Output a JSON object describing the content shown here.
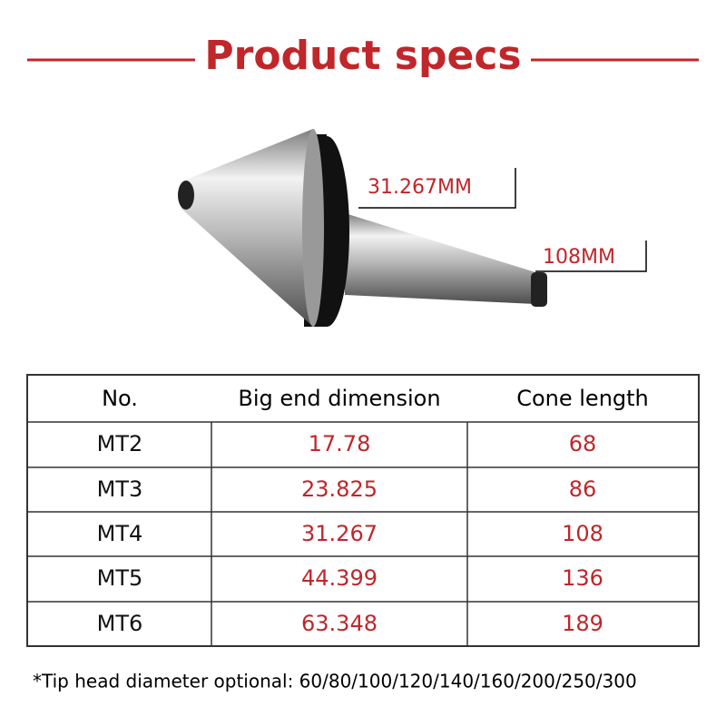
{
  "header": {
    "title": "Product specs"
  },
  "dimensions": {
    "diameter": "31.267MM",
    "length": "108MM"
  },
  "table": {
    "columns": [
      "No.",
      "Big end dimension",
      "Cone length"
    ],
    "rows": [
      [
        "MT2",
        "17.78",
        "68"
      ],
      [
        "MT3",
        "23.825",
        "86"
      ],
      [
        "MT4",
        "31.267",
        "108"
      ],
      [
        "MT5",
        "44.399",
        "136"
      ],
      [
        "MT6",
        "63.348",
        "189"
      ]
    ]
  },
  "footnote": "*Tip head diameter optional: 60/80/100/120/140/160/200/250/300"
}
